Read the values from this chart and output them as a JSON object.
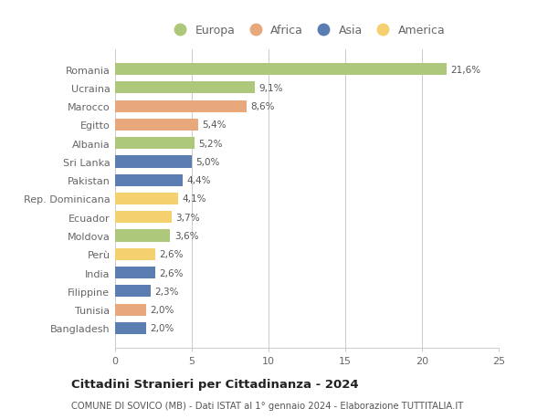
{
  "countries": [
    "Romania",
    "Ucraina",
    "Marocco",
    "Egitto",
    "Albania",
    "Sri Lanka",
    "Pakistan",
    "Rep. Dominicana",
    "Ecuador",
    "Moldova",
    "Perù",
    "India",
    "Filippine",
    "Tunisia",
    "Bangladesh"
  ],
  "values": [
    21.6,
    9.1,
    8.6,
    5.4,
    5.2,
    5.0,
    4.4,
    4.1,
    3.7,
    3.6,
    2.6,
    2.6,
    2.3,
    2.0,
    2.0
  ],
  "labels": [
    "21,6%",
    "9,1%",
    "8,6%",
    "5,4%",
    "5,2%",
    "5,0%",
    "4,4%",
    "4,1%",
    "3,7%",
    "3,6%",
    "2,6%",
    "2,6%",
    "2,3%",
    "2,0%",
    "2,0%"
  ],
  "continents": [
    "Europa",
    "Europa",
    "Africa",
    "Africa",
    "Europa",
    "Asia",
    "Asia",
    "America",
    "America",
    "Europa",
    "America",
    "Asia",
    "Asia",
    "Africa",
    "Asia"
  ],
  "colors": {
    "Europa": "#adc87a",
    "Africa": "#e8a87c",
    "Asia": "#5b7db1",
    "America": "#f5d06e"
  },
  "xlim": [
    0,
    25
  ],
  "xticks": [
    0,
    5,
    10,
    15,
    20,
    25
  ],
  "title": "Cittadini Stranieri per Cittadinanza - 2024",
  "subtitle": "COMUNE DI SOVICO (MB) - Dati ISTAT al 1° gennaio 2024 - Elaborazione TUTTITALIA.IT",
  "background_color": "#ffffff",
  "bar_height": 0.65,
  "grid_color": "#cccccc",
  "label_color": "#555555",
  "text_color": "#666666"
}
